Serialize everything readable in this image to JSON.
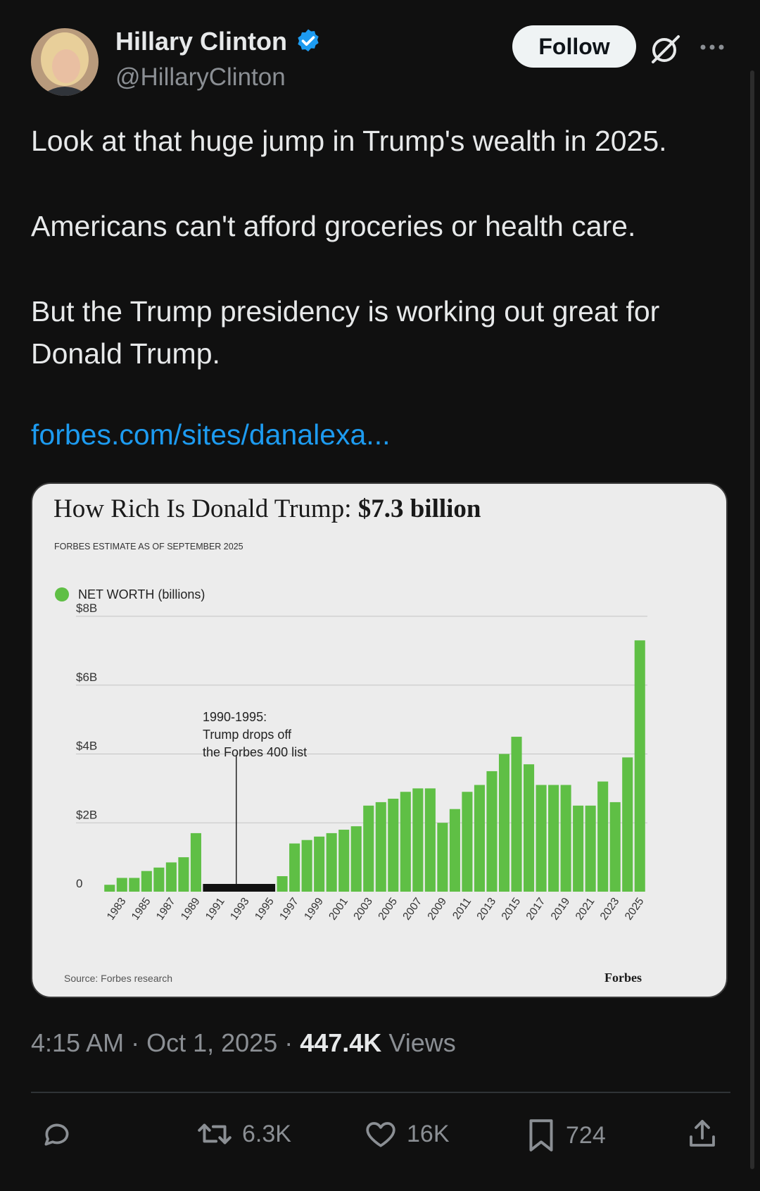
{
  "user": {
    "name": "Hillary Clinton",
    "handle": "@HillaryClinton",
    "verified": true
  },
  "follow_label": "Follow",
  "tweet": {
    "paragraphs": [
      "Look at that huge jump in Trump's wealth in 2025.",
      "Americans can't afford groceries or health care.",
      "But the Trump presidency is working out great for Donald Trump."
    ],
    "link": "forbes.com/sites/danalexa..."
  },
  "card_chart": {
    "title_prefix": "How Rich Is Donald Trump: ",
    "title_bold": "$7.3 billion",
    "subtitle": "FORBES ESTIMATE AS OF SEPTEMBER 2025",
    "source": "Source: Forbes research",
    "brand": "Forbes"
  },
  "chart_data": {
    "type": "bar",
    "title": "How Rich Is Donald Trump: $7.3 billion",
    "subtitle": "FORBES ESTIMATE AS OF SEPTEMBER 2025",
    "legend": "NET WORTH (billions)",
    "legend_position": "top-left",
    "color": "#5fbf45",
    "gap_color": "#111111",
    "categories": [
      1982,
      1983,
      1984,
      1985,
      1986,
      1987,
      1988,
      1989,
      1990,
      1991,
      1992,
      1993,
      1994,
      1995,
      1996,
      1997,
      1998,
      1999,
      2000,
      2001,
      2002,
      2003,
      2004,
      2005,
      2006,
      2007,
      2008,
      2009,
      2010,
      2011,
      2012,
      2013,
      2014,
      2015,
      2016,
      2017,
      2018,
      2019,
      2020,
      2021,
      2022,
      2023,
      2024,
      2025
    ],
    "values": [
      0.2,
      0.4,
      0.4,
      0.6,
      0.7,
      0.85,
      1.0,
      1.7,
      null,
      null,
      null,
      null,
      null,
      null,
      0.45,
      1.4,
      1.5,
      1.6,
      1.7,
      1.8,
      1.9,
      2.5,
      2.6,
      2.7,
      2.9,
      3.0,
      3.0,
      2.0,
      2.4,
      2.9,
      3.1,
      3.5,
      4.0,
      4.5,
      3.7,
      3.1,
      3.1,
      3.1,
      2.5,
      2.5,
      3.2,
      2.6,
      3.9,
      7.3
    ],
    "gap_range": [
      1990,
      1995
    ],
    "gap_label_lines": [
      "1990-1995:",
      "Trump drops off",
      "the Forbes 400 list"
    ],
    "tick_labels_x": [
      "1983",
      "1985",
      "1987",
      "1989",
      "1991",
      "1993",
      "1995",
      "1997",
      "1999",
      "2001",
      "2003",
      "2005",
      "2007",
      "2009",
      "2011",
      "2013",
      "2015",
      "2017",
      "2019",
      "2021",
      "2023",
      "2025"
    ],
    "tick_labels_y": [
      "0",
      "$2B",
      "$4B",
      "$6B",
      "$8B"
    ],
    "y_ticks": [
      0,
      2,
      4,
      6,
      8
    ],
    "ylim": [
      0,
      8
    ],
    "grid": true
  },
  "meta": {
    "time": "4:15 AM",
    "date": "Oct 1, 2025",
    "sep": "·",
    "views_count": "447.4K",
    "views_label": "Views"
  },
  "actions": {
    "retweets": "6.3K",
    "likes": "16K",
    "bookmarks": "724"
  },
  "icons": [
    "avatar",
    "verified-icon",
    "grok-icon",
    "more-icon",
    "reply-icon",
    "retweet-icon",
    "like-icon",
    "bookmark-icon",
    "share-icon"
  ]
}
